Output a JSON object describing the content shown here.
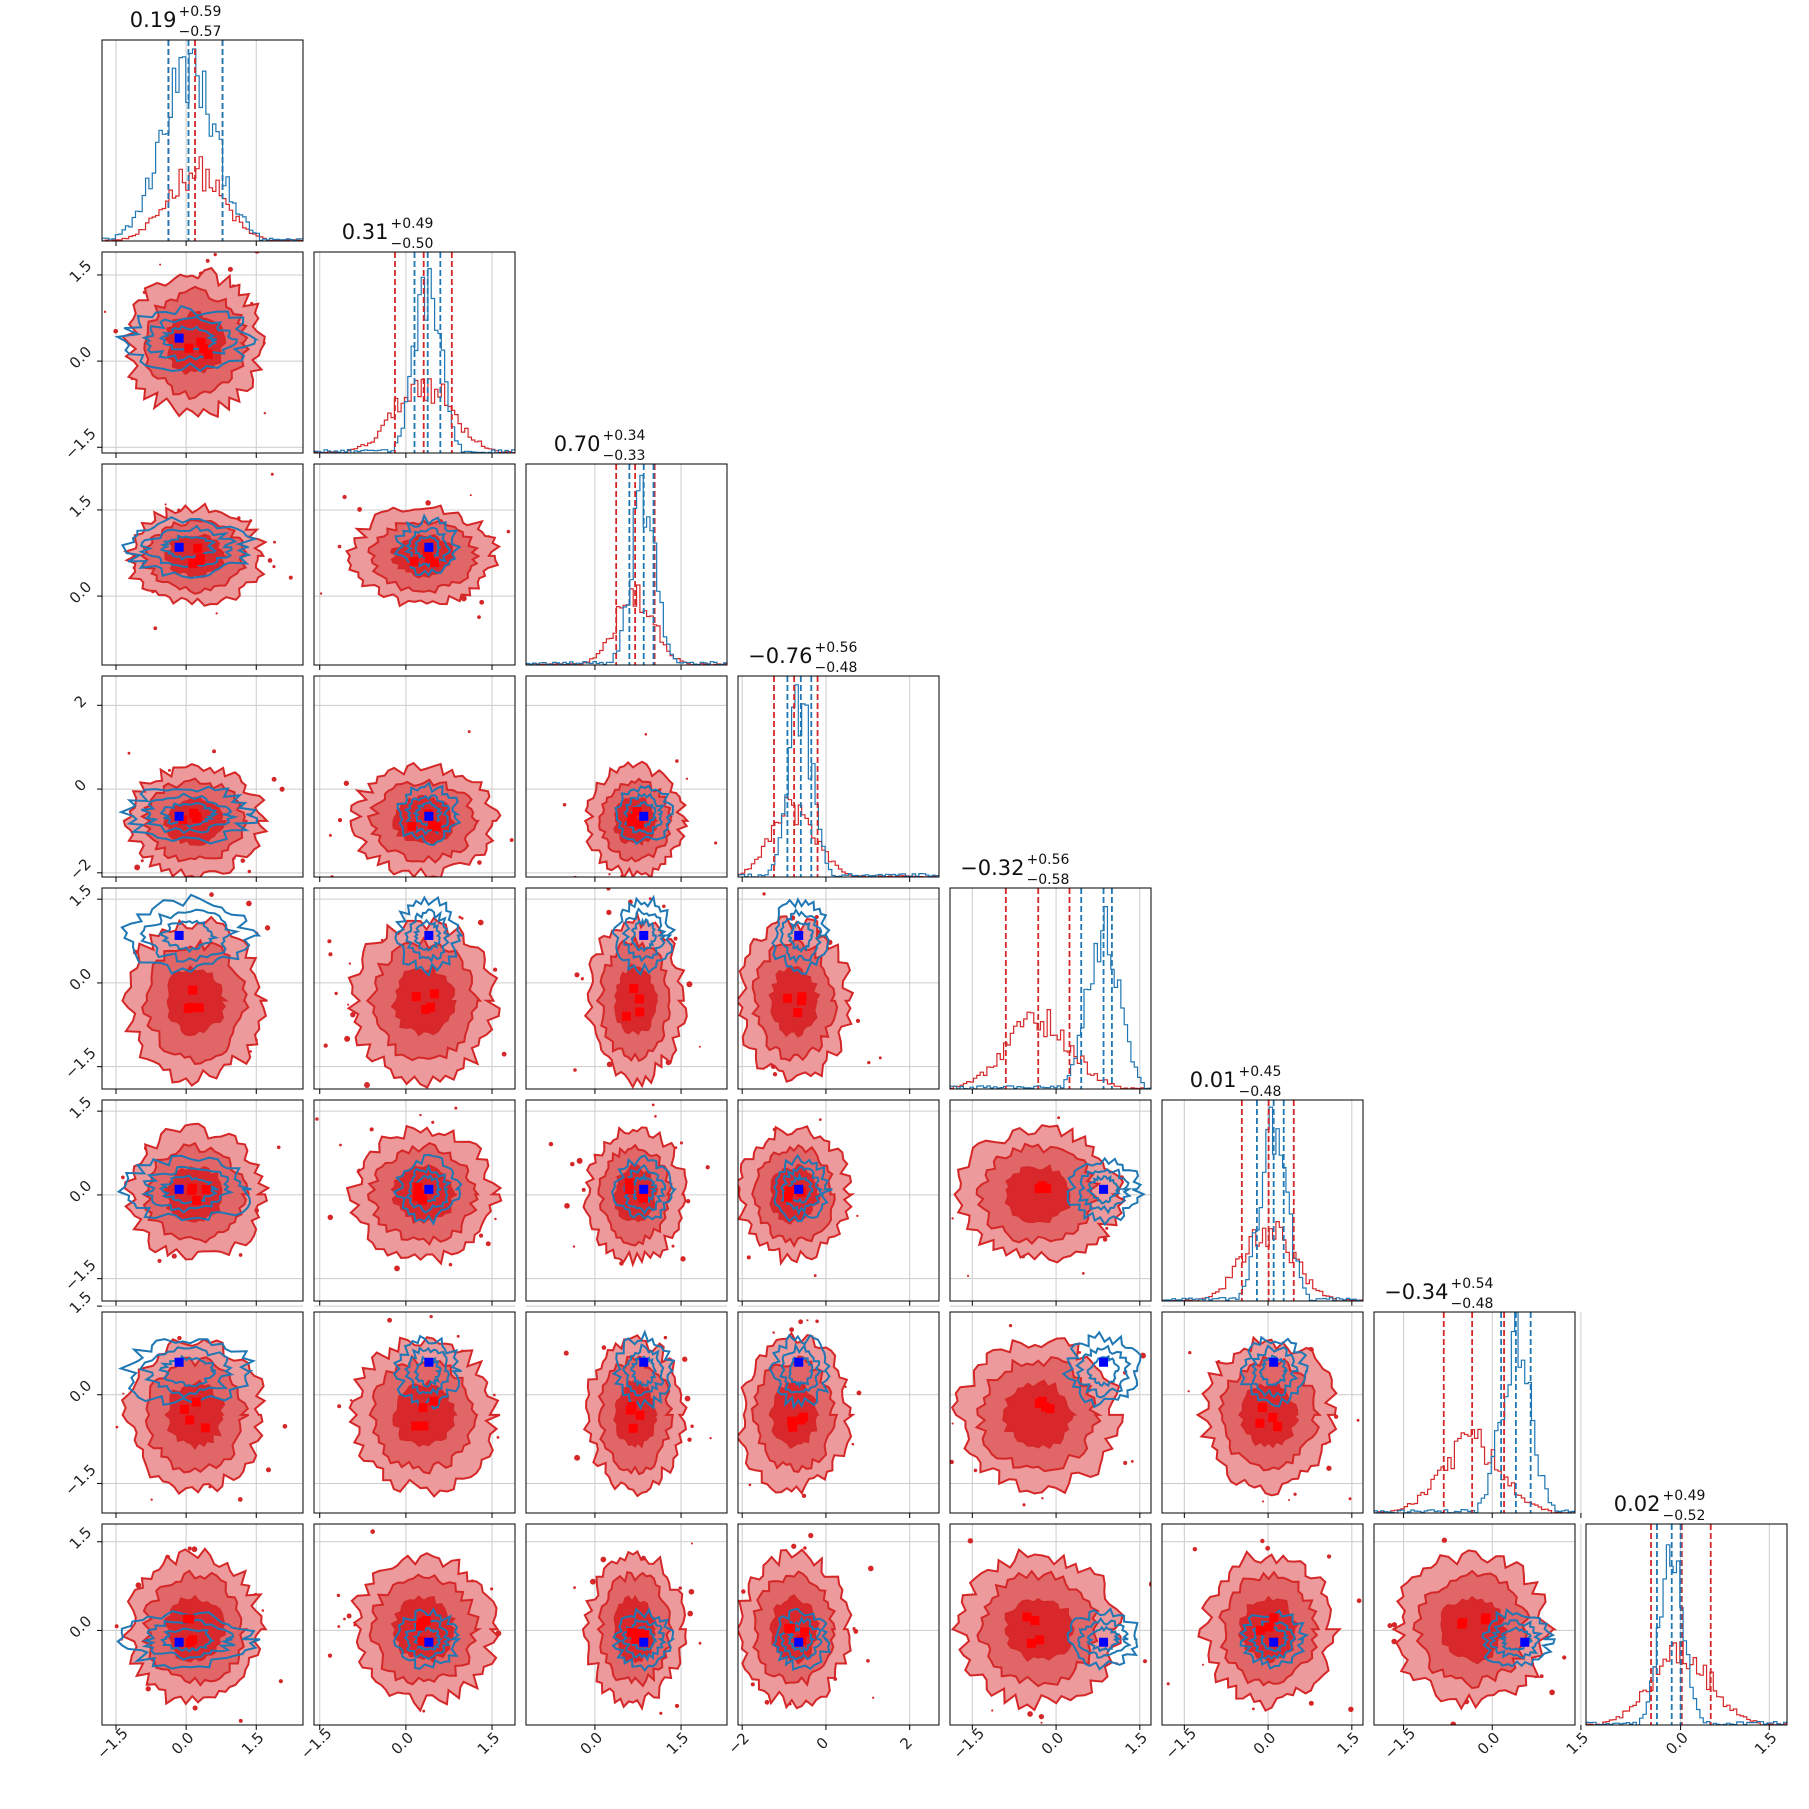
{
  "chart_data": {
    "type": "corner",
    "n_params": 8,
    "grid": true,
    "colors": {
      "prior_line": "#d62728",
      "prior_fill_outer": "#ec9a9b",
      "prior_fill_inner": "#d9282b",
      "posterior_line": "#1f77b4",
      "truth_marker": "#0000ff",
      "prior_marker": "#ff0000"
    },
    "params": [
      {
        "median": 0.19,
        "plus": "0.59",
        "minus": "0.57",
        "ticks": [
          -1.5,
          0.0,
          1.5
        ],
        "tick_labels": [
          "−1.5",
          "0.0",
          "1.5"
        ],
        "range": [
          -1.8,
          2.5
        ],
        "red_quantiles": [
          -0.38,
          0.19,
          0.78
        ],
        "blue_quantiles": [
          -0.38,
          0.05,
          0.78
        ],
        "truth": -0.15
      },
      {
        "median": 0.31,
        "plus": "0.49",
        "minus": "0.50",
        "ticks": [
          -1.5,
          0.0,
          1.5
        ],
        "tick_labels": [
          "−1.5",
          "0.0",
          "1.5"
        ],
        "range": [
          -1.6,
          1.9
        ],
        "red_quantiles": [
          -0.19,
          0.31,
          0.8
        ],
        "blue_quantiles": [
          0.15,
          0.38,
          0.6
        ],
        "truth": 0.4
      },
      {
        "median": 0.7,
        "plus": "0.34",
        "minus": "0.33",
        "ticks": [
          0.0,
          1.5
        ],
        "tick_labels": [
          "0.0",
          "1.5"
        ],
        "range": [
          -1.2,
          2.3
        ],
        "red_quantiles": [
          0.37,
          0.7,
          1.04
        ],
        "blue_quantiles": [
          0.6,
          0.85,
          1.02
        ],
        "truth": 0.85
      },
      {
        "median": -0.76,
        "plus": "0.56",
        "minus": "0.48",
        "ticks": [
          -2,
          0,
          2
        ],
        "tick_labels": [
          "−2",
          "0",
          "2"
        ],
        "range": [
          -2.1,
          2.7
        ],
        "red_quantiles": [
          -1.24,
          -0.76,
          -0.2
        ],
        "blue_quantiles": [
          -0.92,
          -0.6,
          -0.35
        ],
        "truth": -0.65
      },
      {
        "median": -0.32,
        "plus": "0.56",
        "minus": "0.58",
        "ticks": [
          -1.5,
          0.0,
          1.5
        ],
        "tick_labels": [
          "−1.5",
          "0.0",
          "1.5"
        ],
        "range": [
          -1.9,
          1.7
        ],
        "red_quantiles": [
          -0.9,
          -0.32,
          0.24
        ],
        "blue_quantiles": [
          0.45,
          0.85,
          1.0
        ],
        "truth": 0.85
      },
      {
        "median": 0.01,
        "plus": "0.45",
        "minus": "0.48",
        "ticks": [
          -1.5,
          0.0,
          1.5
        ],
        "tick_labels": [
          "−1.5",
          "0.0",
          "1.5"
        ],
        "range": [
          -1.9,
          1.7
        ],
        "red_quantiles": [
          -0.47,
          0.01,
          0.46
        ],
        "blue_quantiles": [
          -0.2,
          0.1,
          0.28
        ],
        "truth": 0.1
      },
      {
        "median": -0.34,
        "plus": "0.54",
        "minus": "0.48",
        "ticks": [
          -1.5,
          0.0,
          1.5
        ],
        "tick_labels": [
          "−1.5",
          "0.0",
          "1.5"
        ],
        "range": [
          -2.0,
          1.4
        ],
        "red_quantiles": [
          -0.82,
          -0.34,
          0.2
        ],
        "blue_quantiles": [
          0.15,
          0.4,
          0.65
        ],
        "truth": 0.55
      },
      {
        "median": 0.02,
        "plus": "0.49",
        "minus": "0.52",
        "ticks": [
          0.0,
          1.5
        ],
        "tick_labels": [
          "0.0",
          "1.5"
        ],
        "range": [
          -1.6,
          1.8
        ],
        "red_quantiles": [
          -0.5,
          0.02,
          0.51
        ],
        "blue_quantiles": [
          -0.4,
          -0.15,
          0.0
        ],
        "truth": -0.2
      }
    ]
  }
}
